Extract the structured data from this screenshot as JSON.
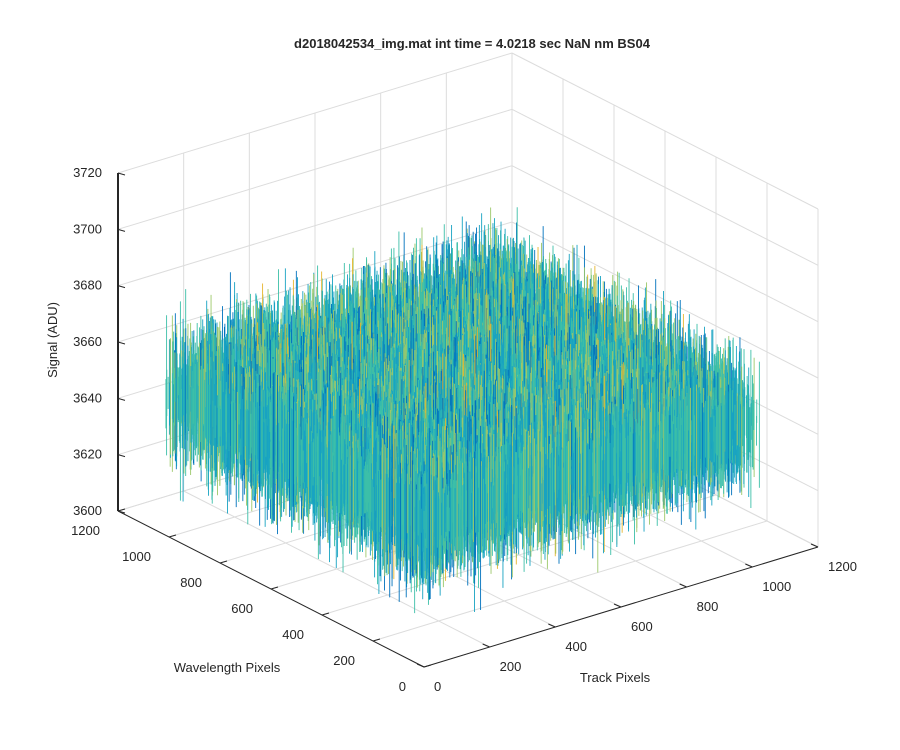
{
  "chart_data": {
    "type": "surface",
    "title": "d2018042534_img.mat int time = 4.0218 sec  NaN nm BS04",
    "xlabel": "Track Pixels",
    "ylabel": "Wavelength Pixels",
    "zlabel": "Signal (ADU)",
    "xlim": [
      0,
      1200
    ],
    "ylim": [
      0,
      1200
    ],
    "zlim": [
      3600,
      3720
    ],
    "x_ticks": [
      "0",
      "200",
      "400",
      "600",
      "800",
      "1000",
      "1200"
    ],
    "y_ticks": [
      "0",
      "200",
      "400",
      "600",
      "800",
      "1000",
      "1200"
    ],
    "z_ticks": [
      "3600",
      "3620",
      "3640",
      "3660",
      "3680",
      "3700",
      "3720"
    ],
    "data_extent": {
      "track_pixels": [
        1,
        1024
      ],
      "wavelength_pixels": [
        1,
        1024
      ]
    },
    "signal_summary": {
      "typical_min": 3620,
      "mean": 3650,
      "typical_max": 3690,
      "peak": 3705
    },
    "grid": true,
    "colormap": [
      "#0072BD",
      "#18A3C2",
      "#3CBFA8",
      "#9CC86A",
      "#E6B52E"
    ]
  }
}
